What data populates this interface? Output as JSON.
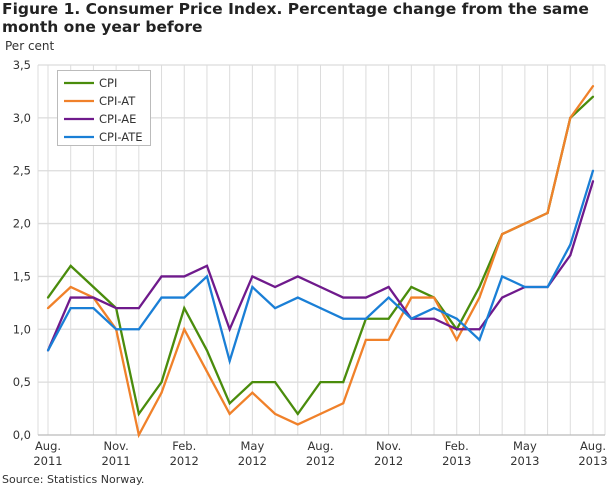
{
  "chart_data": {
    "type": "line",
    "title": "Figure 1. Consumer Price Index. Percentage change from the same month one year before",
    "ylabel": "Per cent",
    "xlabel": "",
    "source": "Source: Statistics Norway.",
    "ylim": [
      0,
      3.5
    ],
    "yticks": [
      "0,0",
      "0,5",
      "1,0",
      "1,5",
      "2,0",
      "2,5",
      "3,0",
      "3,5"
    ],
    "x": [
      "2011-08",
      "2011-09",
      "2011-10",
      "2011-11",
      "2011-12",
      "2012-01",
      "2012-02",
      "2012-03",
      "2012-04",
      "2012-05",
      "2012-06",
      "2012-07",
      "2012-08",
      "2012-09",
      "2012-10",
      "2012-11",
      "2012-12",
      "2013-01",
      "2013-02",
      "2013-03",
      "2013-04",
      "2013-05",
      "2013-06",
      "2013-07",
      "2013-08"
    ],
    "xticks": [
      {
        "month": "Aug.",
        "year": "2011",
        "index": 0
      },
      {
        "month": "Nov.",
        "year": "2011",
        "index": 3
      },
      {
        "month": "Feb.",
        "year": "2012",
        "index": 6
      },
      {
        "month": "May",
        "year": "2012",
        "index": 9
      },
      {
        "month": "Aug.",
        "year": "2012",
        "index": 12
      },
      {
        "month": "Nov.",
        "year": "2012",
        "index": 15
      },
      {
        "month": "Feb.",
        "year": "2013",
        "index": 18
      },
      {
        "month": "May",
        "year": "2013",
        "index": 21
      },
      {
        "month": "Aug.",
        "year": "2013",
        "index": 24
      }
    ],
    "grid": true,
    "legend_position": "top-left",
    "series": [
      {
        "name": "CPI",
        "color": "#4a8c0c",
        "values": [
          1.3,
          1.6,
          1.4,
          1.2,
          0.2,
          0.5,
          1.2,
          0.8,
          0.3,
          0.5,
          0.5,
          0.2,
          0.5,
          0.5,
          1.1,
          1.1,
          1.4,
          1.3,
          1.0,
          1.4,
          1.9,
          2.0,
          2.1,
          3.0,
          3.2
        ]
      },
      {
        "name": "CPI-AT",
        "color": "#f0812a",
        "values": [
          1.2,
          1.4,
          1.3,
          1.0,
          0.0,
          0.4,
          1.0,
          0.6,
          0.2,
          0.4,
          0.2,
          0.1,
          0.2,
          0.3,
          0.9,
          0.9,
          1.3,
          1.3,
          0.9,
          1.3,
          1.9,
          2.0,
          2.1,
          3.0,
          3.3
        ]
      },
      {
        "name": "CPI-AE",
        "color": "#6f1a8c",
        "values": [
          0.8,
          1.3,
          1.3,
          1.2,
          1.2,
          1.5,
          1.5,
          1.6,
          1.0,
          1.5,
          1.4,
          1.5,
          1.4,
          1.3,
          1.3,
          1.4,
          1.1,
          1.1,
          1.0,
          1.0,
          1.3,
          1.4,
          1.4,
          1.7,
          2.4
        ]
      },
      {
        "name": "CPI-ATE",
        "color": "#1a7fd6",
        "values": [
          0.8,
          1.2,
          1.2,
          1.0,
          1.0,
          1.3,
          1.3,
          1.5,
          0.7,
          1.4,
          1.2,
          1.3,
          1.2,
          1.1,
          1.1,
          1.3,
          1.1,
          1.2,
          1.1,
          0.9,
          1.5,
          1.4,
          1.4,
          1.8,
          2.5
        ]
      }
    ]
  }
}
